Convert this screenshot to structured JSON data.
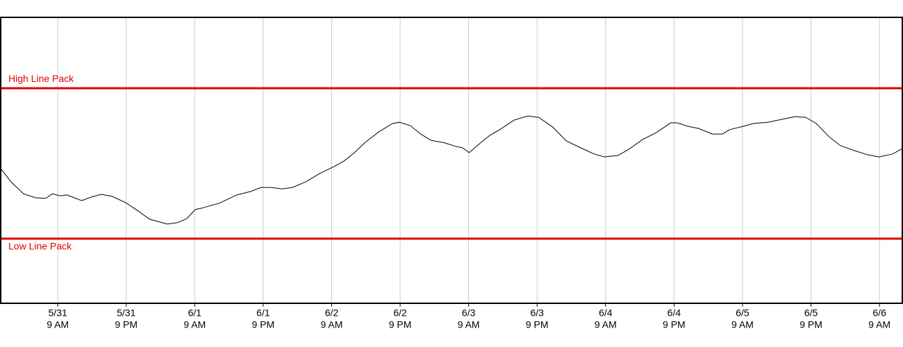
{
  "chart_data": {
    "type": "line",
    "xlim": [
      -10,
      148
    ],
    "ylim": [
      0,
      100
    ],
    "xticks": [
      {
        "value": 0,
        "label": [
          "5/31",
          "9 AM"
        ]
      },
      {
        "value": 12,
        "label": [
          "5/31",
          "9 PM"
        ]
      },
      {
        "value": 24,
        "label": [
          "6/1",
          "9 AM"
        ]
      },
      {
        "value": 36,
        "label": [
          "6/1",
          "9 PM"
        ]
      },
      {
        "value": 48,
        "label": [
          "6/2",
          "9 AM"
        ]
      },
      {
        "value": 60,
        "label": [
          "6/2",
          "9 PM"
        ]
      },
      {
        "value": 72,
        "label": [
          "6/3",
          "9 AM"
        ]
      },
      {
        "value": 84,
        "label": [
          "6/3",
          "9 PM"
        ]
      },
      {
        "value": 96,
        "label": [
          "6/4",
          "9 AM"
        ]
      },
      {
        "value": 108,
        "label": [
          "6/4",
          "9 PM"
        ]
      },
      {
        "value": 120,
        "label": [
          "6/5",
          "9 AM"
        ]
      },
      {
        "value": 132,
        "label": [
          "6/5",
          "9 PM"
        ]
      },
      {
        "value": 144,
        "label": [
          "6/6",
          "9 AM"
        ]
      }
    ],
    "grid": true,
    "reference_lines": [
      {
        "label": "High Line Pack",
        "value": 75.2,
        "color": "#e00000"
      },
      {
        "label": "Low Line Pack",
        "value": 22.6,
        "color": "#e00000"
      }
    ],
    "series": [
      {
        "color": "#000000",
        "x": [
          -10,
          -8.2,
          -6,
          -3.9,
          -2.1,
          -0.9,
          0.3,
          1.6,
          4.2,
          5.8,
          7.6,
          9.5,
          11.9,
          14.3,
          16.1,
          19.2,
          21,
          22.6,
          24.1,
          25.3,
          26.5,
          28.3,
          31.4,
          33.8,
          35.6,
          37.4,
          39.3,
          41.1,
          43.5,
          45.9,
          48.4,
          50.2,
          52,
          53.9,
          56.3,
          58.7,
          59.9,
          61.8,
          63.6,
          65.4,
          67.8,
          69.7,
          70.9,
          72.1,
          73.9,
          75.7,
          77.6,
          80,
          82.4,
          84.3,
          86.7,
          89.1,
          91.6,
          94,
          95.8,
          98.2,
          100.1,
          102.5,
          104.9,
          107.4,
          108.6,
          110.4,
          112.2,
          114.7,
          116.5,
          117.7,
          120.1,
          122,
          124.4,
          126.8,
          129.3,
          131.1,
          132.9,
          135.3,
          137.2,
          139.6,
          142,
          143.9,
          146.3,
          148
        ],
        "values": [
          47.1,
          42.5,
          38.3,
          36.9,
          36.7,
          38.3,
          37.6,
          37.9,
          35.9,
          37.1,
          38.1,
          37.4,
          35.2,
          32.0,
          29.4,
          27.7,
          28.2,
          29.6,
          32.8,
          33.3,
          34.0,
          35.0,
          37.9,
          39.1,
          40.5,
          40.5,
          40.0,
          40.5,
          42.5,
          45.4,
          47.8,
          49.8,
          52.7,
          56.3,
          60.0,
          62.9,
          63.3,
          62.1,
          59.2,
          57.0,
          56.1,
          54.9,
          54.4,
          52.7,
          55.8,
          58.7,
          60.9,
          64.1,
          65.5,
          65.0,
          61.7,
          56.8,
          54.4,
          52.2,
          51.2,
          51.7,
          53.9,
          57.3,
          59.7,
          63.1,
          63.1,
          61.9,
          61.2,
          59.2,
          59.2,
          60.7,
          61.9,
          62.9,
          63.3,
          64.3,
          65.3,
          65.0,
          62.9,
          58.0,
          55.1,
          53.4,
          51.9,
          51.2,
          52.2,
          54.1
        ]
      }
    ]
  }
}
